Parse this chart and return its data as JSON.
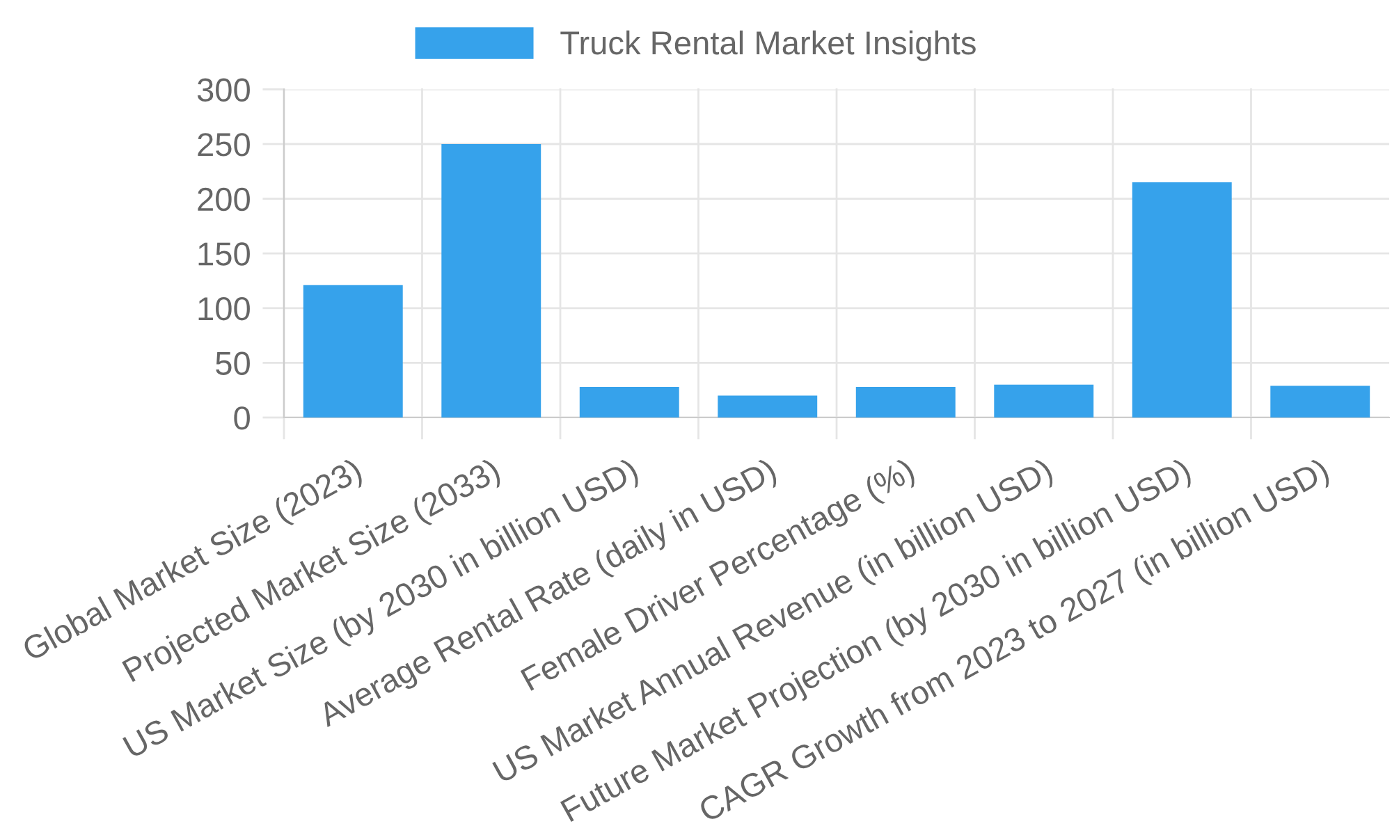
{
  "chart_data": {
    "type": "bar",
    "categories": [
      "Global Market Size (2023)",
      "Projected Market Size (2033)",
      "US Market Size (by 2030 in billion USD)",
      "Average Rental Rate (daily in USD)",
      "Female Driver Percentage (%)",
      "US Market Annual Revenue (in billion USD)",
      "Future Market Projection (by 2030 in billion USD)",
      "CAGR Growth from 2023 to 2027 (in billion USD)"
    ],
    "series": [
      {
        "name": "Truck Rental Market Insights",
        "color": "#36a2eb",
        "values": [
          121,
          250,
          28,
          20,
          28,
          30,
          215,
          29
        ]
      }
    ],
    "ylim": [
      0,
      300
    ],
    "yticks": [
      0,
      50,
      100,
      150,
      200,
      250,
      300
    ],
    "grid": true,
    "legend": "top"
  }
}
